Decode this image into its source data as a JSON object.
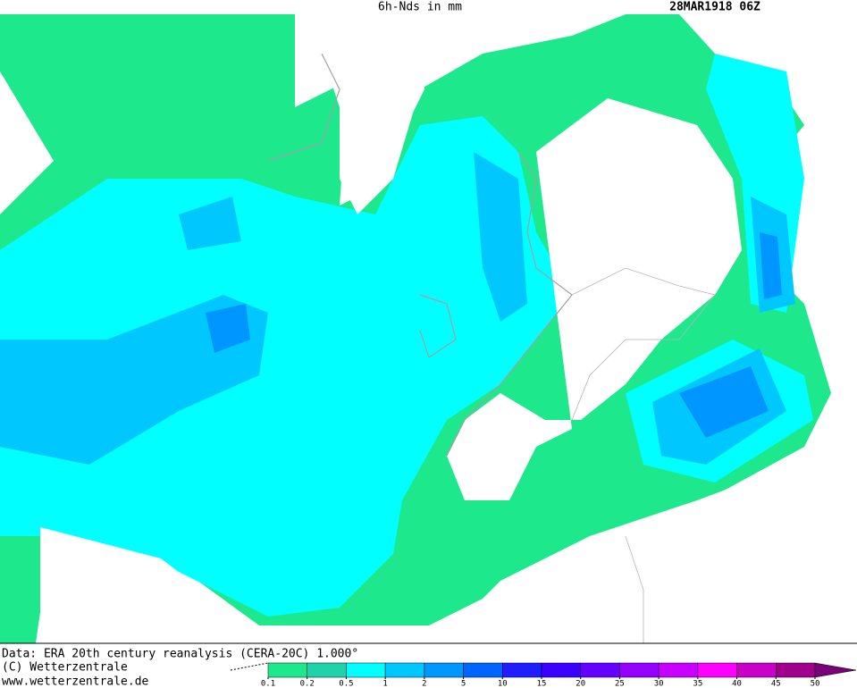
{
  "header": {
    "title": "6h-Nds in mm",
    "run": "28MAR1918 06Z"
  },
  "footer": {
    "source": "Data: ERA 20th century reanalysis (CERA-20C) 1.000°",
    "copyright": "(C) Wetterzentrale",
    "url": "www.wetterzentrale.de"
  },
  "legend": {
    "ticks": [
      0.1,
      0.2,
      0.5,
      1,
      2,
      5,
      10,
      15,
      20,
      25,
      30,
      35,
      40,
      45,
      50
    ],
    "colors": [
      "#1ee88c",
      "#1ed2aa",
      "#00ffff",
      "#00c8ff",
      "#0096ff",
      "#0064ff",
      "#1e1eff",
      "#3c00ff",
      "#6400ff",
      "#9600ff",
      "#c800ff",
      "#ff00ff",
      "#c800c8",
      "#a0008c",
      "#780078"
    ]
  }
}
